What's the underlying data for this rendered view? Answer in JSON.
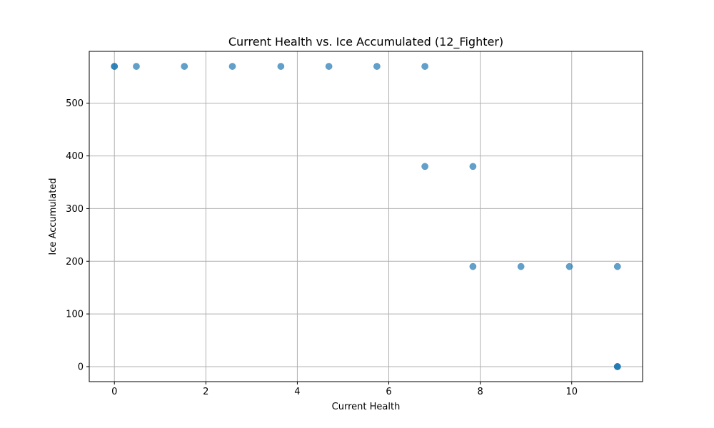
{
  "chart_data": {
    "type": "scatter",
    "title": "Current Health vs. Ice Accumulated (12_Fighter)",
    "xlabel": "Current Health",
    "ylabel": "Ice Accumulated",
    "xlim": [
      -0.55,
      11.55
    ],
    "ylim": [
      -28.5,
      598.5
    ],
    "xticks": [
      0,
      2,
      4,
      6,
      8,
      10
    ],
    "yticks": [
      0,
      100,
      200,
      300,
      400,
      500
    ],
    "grid": true,
    "marker_color": "#1f77b4",
    "marker_alpha": 0.7,
    "points": [
      {
        "x": 0.0,
        "y": 570
      },
      {
        "x": 0.0,
        "y": 570
      },
      {
        "x": 0.48,
        "y": 570
      },
      {
        "x": 1.53,
        "y": 570
      },
      {
        "x": 2.58,
        "y": 570
      },
      {
        "x": 3.64,
        "y": 570
      },
      {
        "x": 4.69,
        "y": 570
      },
      {
        "x": 5.74,
        "y": 570
      },
      {
        "x": 6.79,
        "y": 570
      },
      {
        "x": 6.79,
        "y": 380
      },
      {
        "x": 7.84,
        "y": 380
      },
      {
        "x": 7.84,
        "y": 190
      },
      {
        "x": 8.89,
        "y": 190
      },
      {
        "x": 9.95,
        "y": 190
      },
      {
        "x": 11.0,
        "y": 190
      },
      {
        "x": 11.0,
        "y": 0
      },
      {
        "x": 11.0,
        "y": 0
      },
      {
        "x": 11.0,
        "y": 0
      }
    ]
  }
}
